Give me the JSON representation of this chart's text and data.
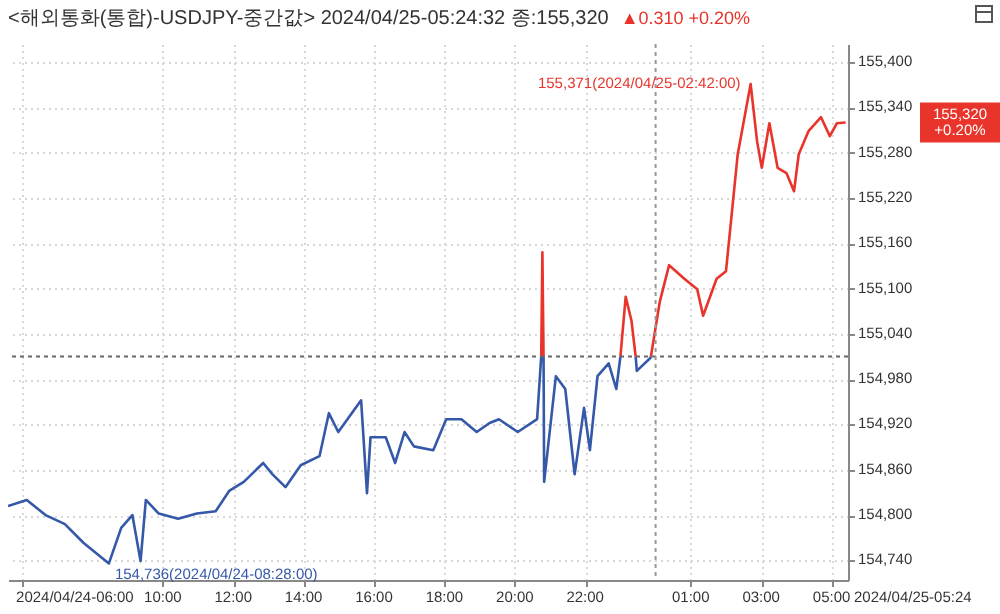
{
  "chart_data": {
    "type": "line",
    "title": "<해외통화(통합)-USDJPY-중간값> 2024/04/25-05:24:32 종:155,320",
    "annotations": [
      "▲0.310 +0.20%",
      {
        "text": "155,371(2024/04/25-02:42:00)",
        "x": "2024-04-25T02:42",
        "y": 155371
      },
      {
        "text": "154,736(2024/04/24-08:28:00)",
        "x": "2024-04-24T08:28",
        "y": 154736
      },
      "155,320\n+0.20%",
      "2024/04/25-05:24"
    ],
    "xlim": [
      "2024-04-24T05:36",
      "2024-04-25T05:28"
    ],
    "xticks": [
      {
        "value": "2024-04-24T06:00",
        "label": "2024/04/24-06:00"
      },
      {
        "value": "2024-04-24T10:00",
        "label": "10:00"
      },
      {
        "value": "2024-04-24T12:00",
        "label": "12:00"
      },
      {
        "value": "2024-04-24T14:00",
        "label": "14:00"
      },
      {
        "value": "2024-04-24T16:00",
        "label": "16:00"
      },
      {
        "value": "2024-04-24T18:00",
        "label": "18:00"
      },
      {
        "value": "2024-04-24T20:00",
        "label": "20:00"
      },
      {
        "value": "2024-04-24T22:00",
        "label": "22:00"
      },
      {
        "value": "2024-04-25T01:00",
        "label": "01:00"
      },
      {
        "value": "2024-04-25T03:00",
        "label": "03:00"
      },
      {
        "value": "2024-04-25T05:00",
        "label": "05:00"
      }
    ],
    "ylim": [
      154714,
      155424
    ],
    "yticks": [
      {
        "value": 154740,
        "label": "154,740"
      },
      {
        "value": 154800,
        "label": "154,800"
      },
      {
        "value": 154860,
        "label": "154,860"
      },
      {
        "value": 154920,
        "label": "154,920"
      },
      {
        "value": 154980,
        "label": "154,980"
      },
      {
        "value": 155040,
        "label": "155,040"
      },
      {
        "value": 155100,
        "label": "155,100"
      },
      {
        "value": 155160,
        "label": "155,160"
      },
      {
        "value": 155220,
        "label": "155,220"
      },
      {
        "value": 155280,
        "label": "155,280"
      },
      {
        "value": 155340,
        "label": "155,340"
      },
      {
        "value": 155400,
        "label": "155,400"
      }
    ],
    "grid": true,
    "ref_lines": [
      {
        "axis": "y",
        "value": 155010,
        "color": "#666666",
        "line_style": "dotted"
      },
      {
        "axis": "x",
        "value": "2024-04-25T00:00",
        "color": "#999999",
        "line_style": "dotted"
      }
    ],
    "series": [
      {
        "color": "#3558a8",
        "x": [
          "2024-04-24T05:36",
          "2024-04-24T06:08",
          "2024-04-24T06:40",
          "2024-04-24T07:13",
          "2024-04-24T07:45",
          "2024-04-24T08:28",
          "2024-04-24T08:49",
          "2024-04-24T09:08",
          "2024-04-24T09:22",
          "2024-04-24T09:31",
          "2024-04-24T09:53",
          "2024-04-24T10:26",
          "2024-04-24T10:58",
          "2024-04-24T11:30",
          "2024-04-24T11:53",
          "2024-04-24T12:18",
          "2024-04-24T12:51",
          "2024-04-24T13:07",
          "2024-04-24T13:29",
          "2024-04-24T13:55",
          "2024-04-24T14:27",
          "2024-04-24T14:43",
          "2024-04-24T14:59",
          "2024-04-24T15:22",
          "2024-04-24T15:38",
          "2024-04-24T15:48",
          "2024-04-24T15:54",
          "2024-04-24T16:20",
          "2024-04-24T16:36",
          "2024-04-24T16:52",
          "2024-04-24T17:08",
          "2024-04-24T17:41",
          "2024-04-24T18:03",
          "2024-04-24T18:29",
          "2024-04-24T18:55",
          "2024-04-24T19:17",
          "2024-04-24T19:33",
          "2024-04-24T20:05",
          "2024-04-24T20:38",
          "2024-04-24T20:45",
          "2024-04-24T20:49",
          "2024-04-24T20:50",
          "2024-04-24T21:10",
          "2024-04-24T21:26",
          "2024-04-24T21:42",
          "2024-04-24T21:58",
          "2024-04-24T22:08",
          "2024-04-24T22:21",
          "2024-04-24T22:40",
          "2024-04-24T22:53",
          "2024-04-24T23:00",
          "2024-04-24T23:13",
          "2024-04-24T23:26",
          "2024-04-24T23:28",
          "2024-04-24T23:51",
          "2024-04-24T23:52"
        ],
        "values": [
          154812,
          154820,
          154800,
          154788,
          154763,
          154736,
          154783,
          154800,
          154739,
          154820,
          154802,
          154795,
          154802,
          154805,
          154832,
          154844,
          154869,
          154854,
          154837,
          154866,
          154878,
          154935,
          154910,
          154935,
          154952,
          154829,
          154903,
          154903,
          154869,
          154910,
          154891,
          154886,
          154927,
          154927,
          154910,
          154922,
          154927,
          154910,
          154927,
          155010,
          155010,
          154844,
          154984,
          154967,
          154854,
          154942,
          154886,
          154984,
          155001,
          154967,
          155010,
          null,
          155010,
          154991,
          155008,
          155010
        ]
      },
      {
        "color": "#e8342b",
        "x": [
          "2024-04-24T20:45",
          "2024-04-24T20:47",
          "2024-04-24T20:49",
          "2024-04-24T21:30",
          "2024-04-24T23:00",
          "2024-04-24T23:09",
          "2024-04-24T23:19",
          "2024-04-24T23:26",
          "2024-04-24T23:40",
          "2024-04-24T23:52",
          "2024-04-25T00:07",
          "2024-04-25T00:23",
          "2024-04-25T00:49",
          "2024-04-25T01:11",
          "2024-04-25T01:21",
          "2024-04-25T01:44",
          "2024-04-25T02:00",
          "2024-04-25T02:20",
          "2024-04-25T02:42",
          "2024-04-25T02:53",
          "2024-04-25T03:01",
          "2024-04-25T03:14",
          "2024-04-25T03:28",
          "2024-04-25T03:43",
          "2024-04-25T03:56",
          "2024-04-25T04:04",
          "2024-04-25T04:21",
          "2024-04-25T04:42",
          "2024-04-25T04:57",
          "2024-04-25T05:09",
          "2024-04-25T05:24"
        ],
        "values": [
          155010,
          155148,
          155010,
          null,
          155010,
          155089,
          155057,
          155010,
          null,
          155010,
          155082,
          155131,
          155113,
          155099,
          155064,
          155113,
          155123,
          155278,
          155371,
          155295,
          155260,
          155319,
          155260,
          155253,
          155229,
          155278,
          155309,
          155327,
          155302,
          155319,
          155320
        ]
      }
    ]
  }
}
